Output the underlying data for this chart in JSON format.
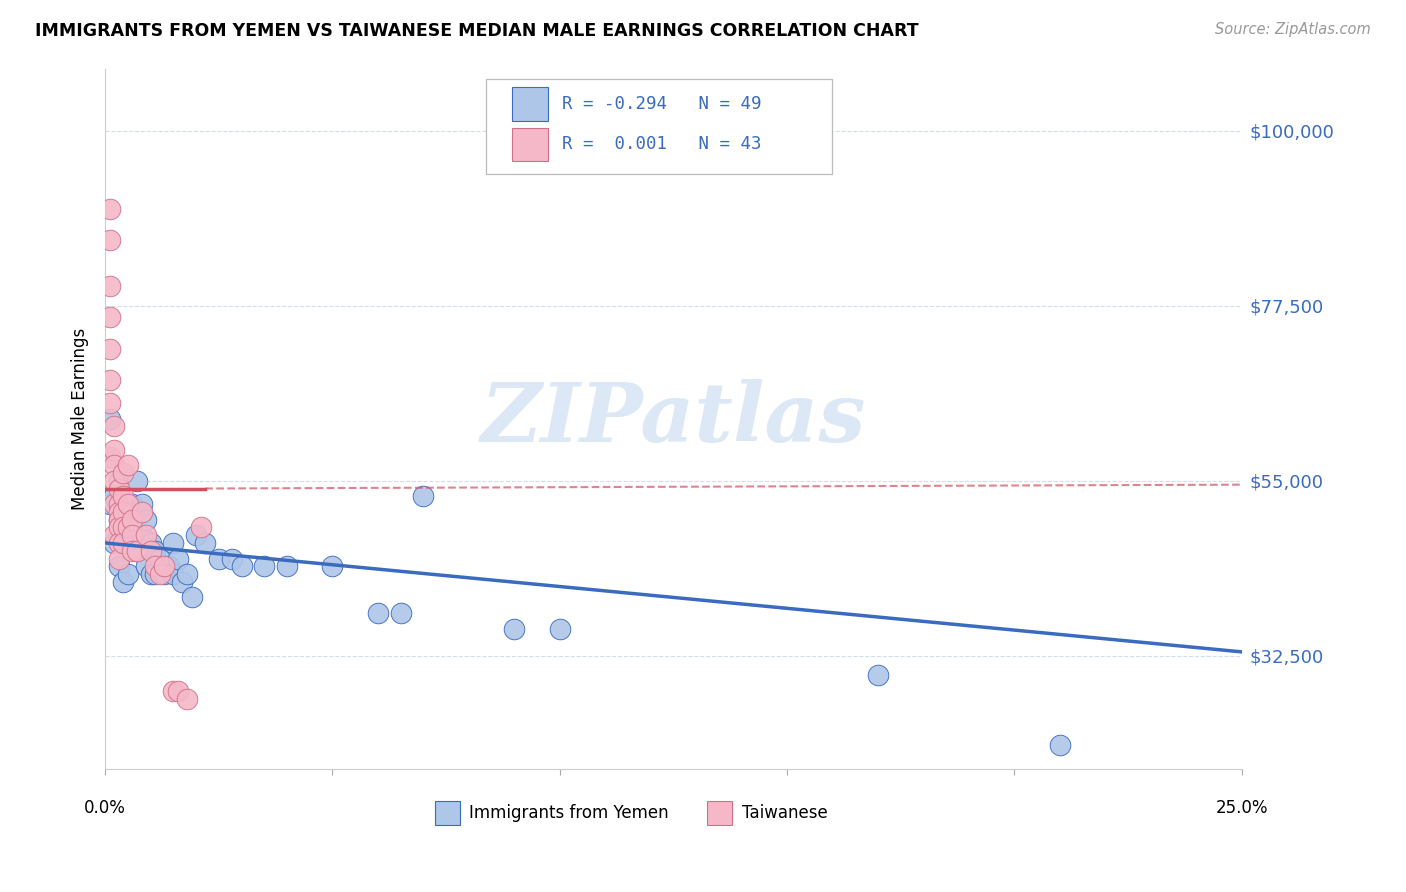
{
  "title": "IMMIGRANTS FROM YEMEN VS TAIWANESE MEDIAN MALE EARNINGS CORRELATION CHART",
  "source": "Source: ZipAtlas.com",
  "ylabel": "Median Male Earnings",
  "yticks": [
    32500,
    55000,
    77500,
    100000
  ],
  "ytick_labels": [
    "$32,500",
    "$55,000",
    "$77,500",
    "$100,000"
  ],
  "xlim": [
    0.0,
    0.25
  ],
  "ylim": [
    18000,
    108000
  ],
  "color_blue": "#aec6e8",
  "color_pink": "#f5b8c8",
  "line_blue": "#3a6bbf",
  "line_pink": "#d05060",
  "watermark": "ZIPatlas",
  "watermark_color": "#dce8f5",
  "blue_x": [
    0.001,
    0.001,
    0.002,
    0.002,
    0.003,
    0.003,
    0.003,
    0.004,
    0.004,
    0.004,
    0.005,
    0.005,
    0.005,
    0.006,
    0.006,
    0.007,
    0.007,
    0.008,
    0.008,
    0.009,
    0.009,
    0.01,
    0.01,
    0.011,
    0.011,
    0.012,
    0.013,
    0.014,
    0.015,
    0.015,
    0.016,
    0.017,
    0.018,
    0.019,
    0.02,
    0.022,
    0.025,
    0.028,
    0.03,
    0.035,
    0.04,
    0.05,
    0.06,
    0.065,
    0.07,
    0.09,
    0.1,
    0.17,
    0.21
  ],
  "blue_y": [
    63000,
    52000,
    53000,
    47000,
    55000,
    50000,
    44000,
    52000,
    49000,
    42000,
    50000,
    47000,
    43000,
    52000,
    48000,
    55000,
    46000,
    52000,
    48000,
    50000,
    44000,
    47000,
    43000,
    46000,
    43000,
    45000,
    43000,
    44000,
    47000,
    43000,
    45000,
    42000,
    43000,
    40000,
    48000,
    47000,
    45000,
    45000,
    44000,
    44000,
    44000,
    44000,
    38000,
    38000,
    53000,
    36000,
    36000,
    30000,
    21000
  ],
  "pink_x": [
    0.001,
    0.001,
    0.001,
    0.001,
    0.001,
    0.001,
    0.001,
    0.001,
    0.002,
    0.002,
    0.002,
    0.002,
    0.002,
    0.002,
    0.003,
    0.003,
    0.003,
    0.003,
    0.003,
    0.003,
    0.003,
    0.004,
    0.004,
    0.004,
    0.004,
    0.004,
    0.005,
    0.005,
    0.005,
    0.006,
    0.006,
    0.006,
    0.007,
    0.008,
    0.009,
    0.01,
    0.011,
    0.012,
    0.013,
    0.015,
    0.016,
    0.018,
    0.021
  ],
  "pink_y": [
    90000,
    86000,
    80000,
    76000,
    72000,
    68000,
    65000,
    58000,
    62000,
    59000,
    57000,
    55000,
    52000,
    48000,
    54000,
    52000,
    51000,
    50000,
    49000,
    47000,
    45000,
    56000,
    53000,
    51000,
    49000,
    47000,
    57000,
    52000,
    49000,
    50000,
    48000,
    46000,
    46000,
    51000,
    48000,
    46000,
    44000,
    43000,
    44000,
    28000,
    28000,
    27000,
    49000
  ]
}
